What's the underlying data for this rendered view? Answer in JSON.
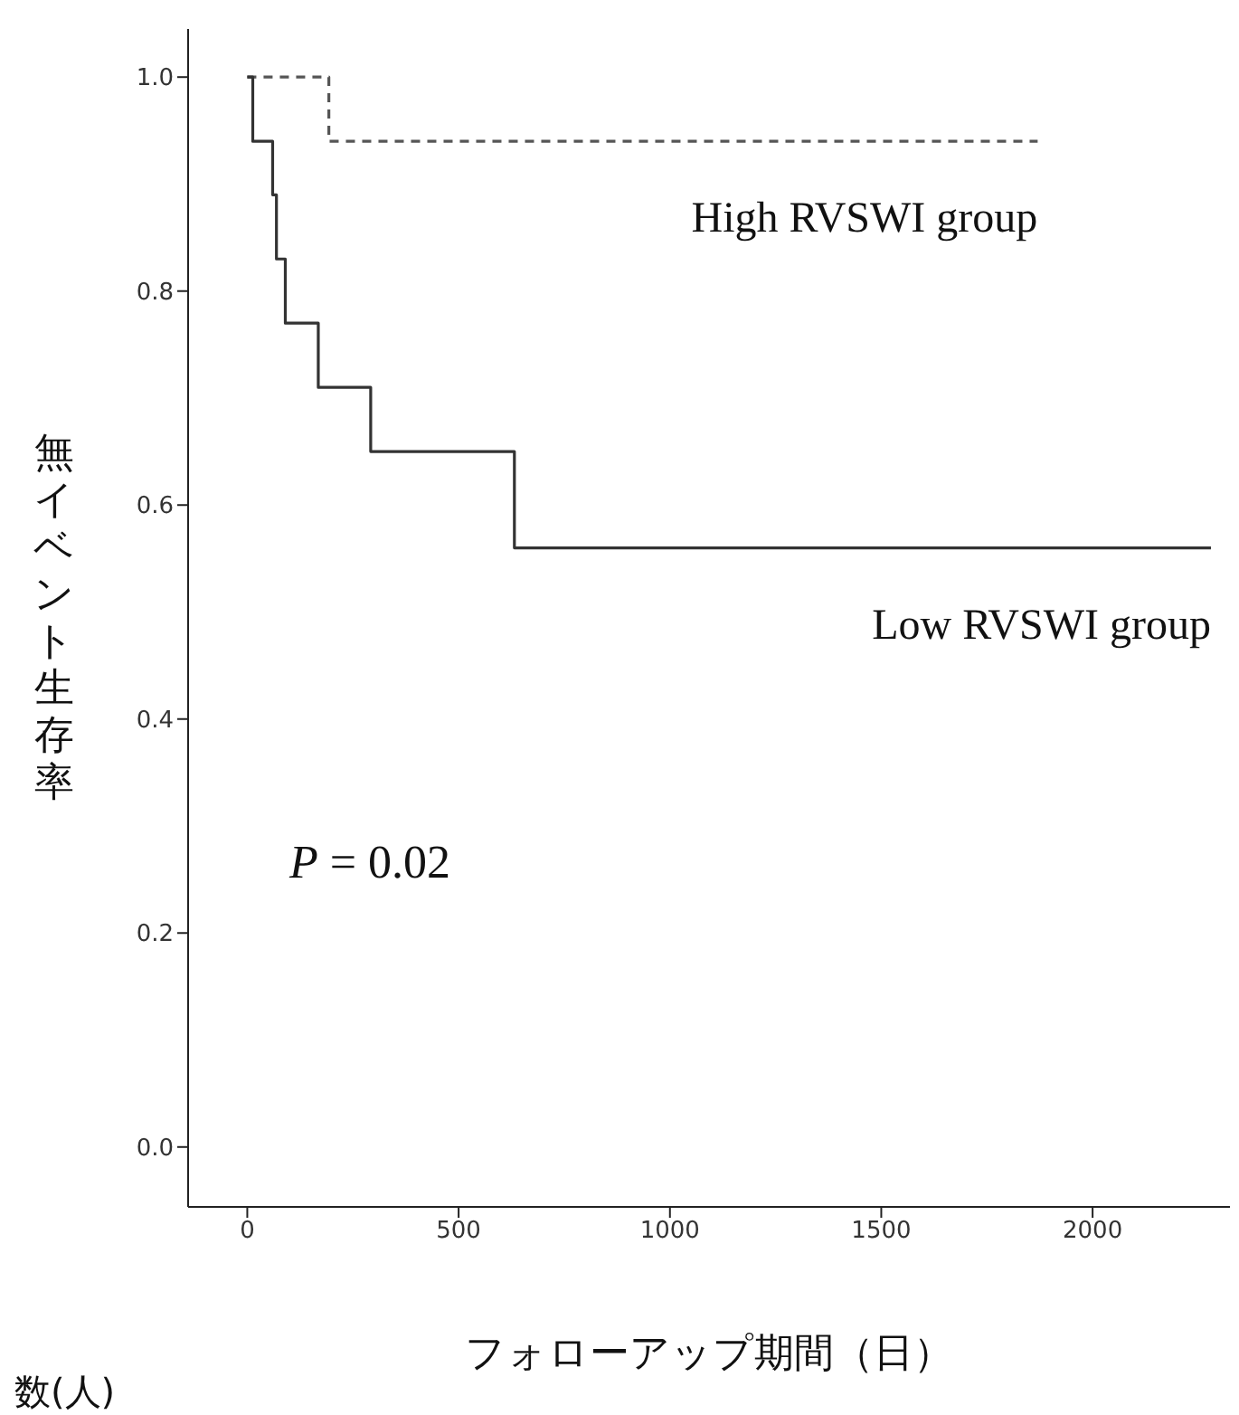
{
  "chart_data": {
    "type": "step",
    "xlabel": "フォローアップ期間（日）",
    "ylabel": "無イベント生存率",
    "annotations": [
      "P = 0.02",
      "数(人)"
    ],
    "series": [
      {
        "name": "High RVSWI group",
        "color": "#555555",
        "line_style": "dashed",
        "x": [
          0,
          193,
          1870
        ],
        "values": [
          1.0,
          0.94,
          0.94
        ]
      },
      {
        "name": "Low RVSWI group",
        "color": "#333333",
        "line_style": "solid",
        "x": [
          0,
          13,
          60,
          69,
          90,
          168,
          292,
          632,
          2280
        ],
        "values": [
          1.0,
          0.94,
          0.89,
          0.83,
          0.77,
          0.71,
          0.65,
          0.56,
          0.56
        ]
      }
    ],
    "xlim": [
      -140,
      2325
    ],
    "xticks": [
      0,
      500,
      1000,
      1500,
      2000
    ],
    "ylim": [
      -0.056,
      1.045
    ],
    "yticks": [
      {
        "value": 0,
        "label": "0.0"
      },
      0.2,
      0.4,
      0.6,
      0.8,
      {
        "value": 1,
        "label": "1.0"
      }
    ]
  }
}
